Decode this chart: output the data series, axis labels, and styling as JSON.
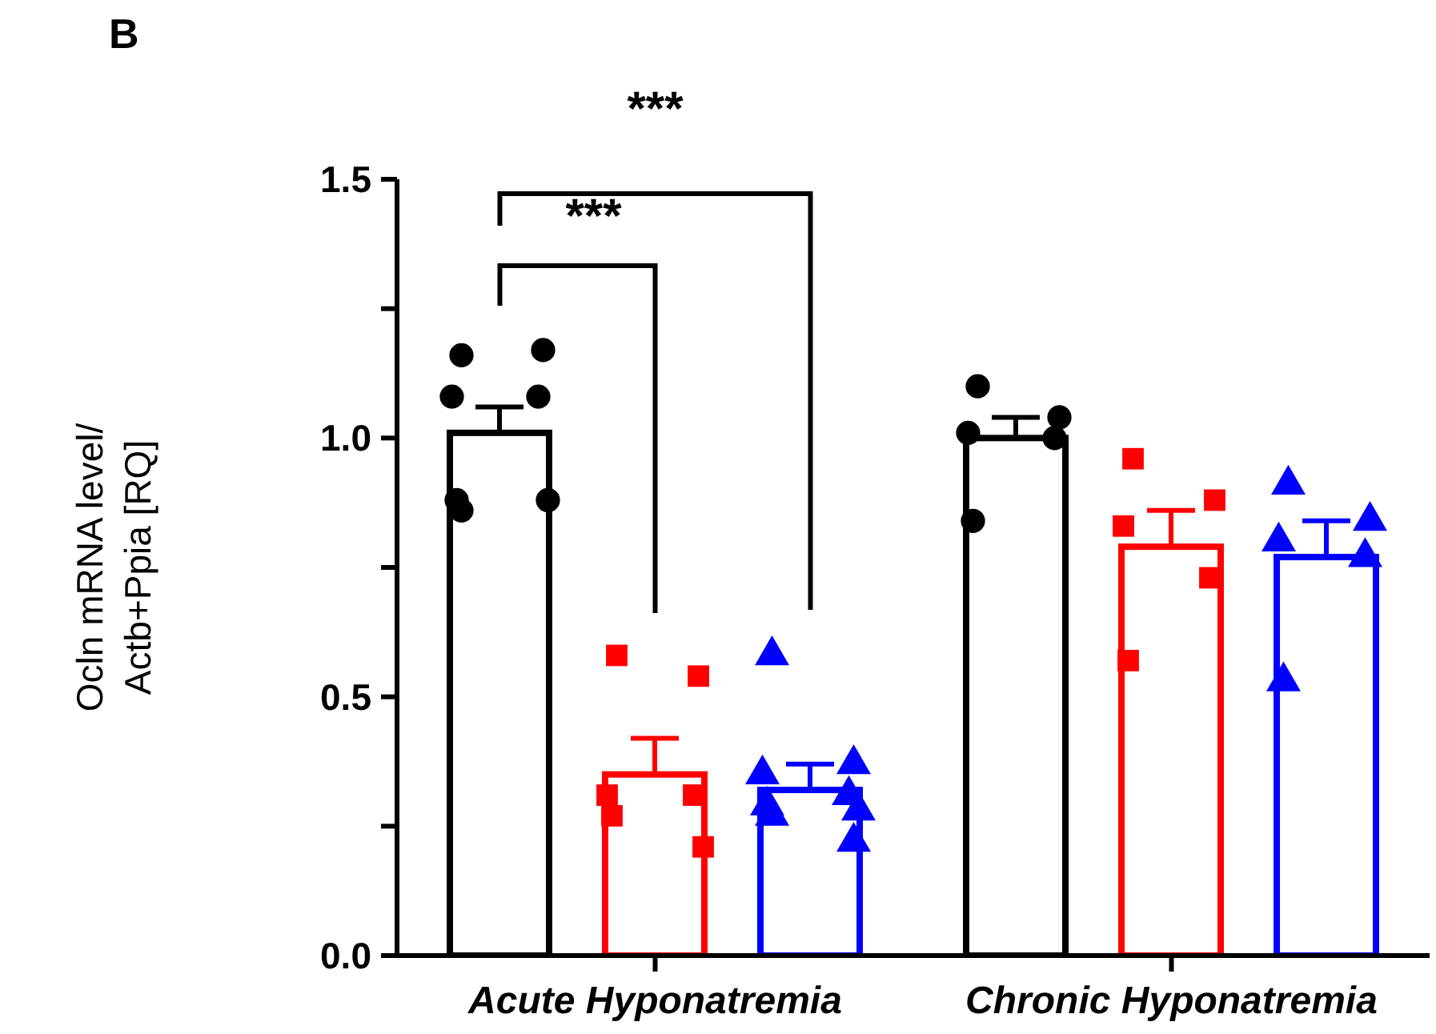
{
  "chart_data": {
    "type": "bar",
    "categories": [
      "Acute Hyponatremia",
      "Chronic Hyponatremia"
    ],
    "ylabel": "Ocln mRNA level/Actb+Ppia [RQ]",
    "annotations": [
      "B",
      "***",
      "***"
    ],
    "ylim": [
      0,
      1.5
    ],
    "yticks": [
      {
        "value": 0,
        "label": "0.0"
      },
      {
        "value": 0.25,
        "label": null
      },
      {
        "value": 0.5,
        "label": "0.5"
      },
      {
        "value": 0.75,
        "label": null
      },
      {
        "value": 1,
        "label": "1.0"
      },
      {
        "value": 1.25,
        "label": null
      },
      {
        "value": 1.5,
        "label": "1.5"
      }
    ],
    "grid": false,
    "series": [
      {
        "type": "bar",
        "color": "#000000",
        "values": [
          1.01,
          1.0
        ],
        "errors": [
          [
            1.01,
            1.06
          ],
          [
            1.0,
            1.04
          ]
        ]
      },
      {
        "type": "bar",
        "color": "#ff0000",
        "values": [
          0.35,
          0.79
        ],
        "errors": [
          [
            0.35,
            0.42
          ],
          [
            0.79,
            0.86
          ]
        ]
      },
      {
        "type": "bar",
        "color": "#0000ff",
        "values": [
          0.32,
          0.77
        ],
        "errors": [
          [
            0.32,
            0.37
          ],
          [
            0.77,
            0.84
          ]
        ]
      },
      {
        "type": "scatter",
        "marker": "circle",
        "color": "#000000",
        "x": [
          "Acute Hyponatremia",
          "Acute Hyponatremia",
          "Acute Hyponatremia",
          "Acute Hyponatremia",
          "Acute Hyponatremia",
          "Acute Hyponatremia",
          "Acute Hyponatremia",
          "Chronic Hyponatremia",
          "Chronic Hyponatremia",
          "Chronic Hyponatremia",
          "Chronic Hyponatremia",
          "Chronic Hyponatremia"
        ],
        "values": [
          1.16,
          1.17,
          1.08,
          1.08,
          0.88,
          0.88,
          0.86,
          1.1,
          1.04,
          1.01,
          1.0,
          0.84
        ]
      },
      {
        "type": "scatter",
        "marker": "square",
        "color": "#ff0000",
        "x": [
          "Acute Hyponatremia",
          "Acute Hyponatremia",
          "Acute Hyponatremia",
          "Acute Hyponatremia",
          "Acute Hyponatremia",
          "Acute Hyponatremia",
          "Chronic Hyponatremia",
          "Chronic Hyponatremia",
          "Chronic Hyponatremia",
          "Chronic Hyponatremia",
          "Chronic Hyponatremia"
        ],
        "values": [
          0.58,
          0.54,
          0.31,
          0.31,
          0.27,
          0.21,
          0.96,
          0.88,
          0.83,
          0.73,
          0.57
        ]
      },
      {
        "type": "scatter",
        "marker": "triangle",
        "color": "#0000ff",
        "x": [
          "Acute Hyponatremia",
          "Acute Hyponatremia",
          "Acute Hyponatremia",
          "Acute Hyponatremia",
          "Acute Hyponatremia",
          "Acute Hyponatremia",
          "Acute Hyponatremia",
          "Acute Hyponatremia",
          "Chronic Hyponatremia",
          "Chronic Hyponatremia",
          "Chronic Hyponatremia",
          "Chronic Hyponatremia",
          "Chronic Hyponatremia"
        ],
        "values": [
          0.58,
          0.37,
          0.35,
          0.31,
          0.29,
          0.28,
          0.27,
          0.22,
          0.91,
          0.84,
          0.8,
          0.77,
          0.53
        ]
      }
    ]
  }
}
